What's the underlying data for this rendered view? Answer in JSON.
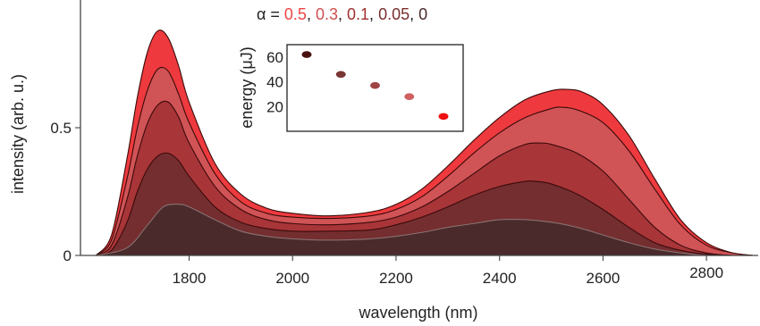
{
  "chart_data": {
    "type": "area",
    "xlabel": "wavelength (nm)",
    "ylabel": "intensity (arb. u.)",
    "xlim": [
      1590,
      2900
    ],
    "ylim": [
      0,
      1.0
    ],
    "x_ticks": [
      1800,
      2000,
      2200,
      2400,
      2600,
      2800
    ],
    "y_ticks": [
      {
        "value": 0,
        "label": "0"
      },
      {
        "value": 0.5,
        "label": "0.5"
      }
    ],
    "legend": {
      "prefix": "α = ",
      "separator": ", ",
      "entries": [
        {
          "label": "0.5",
          "color": "#ee4444"
        },
        {
          "label": "0.3",
          "color": "#d05050"
        },
        {
          "label": "0.1",
          "color": "#a03030"
        },
        {
          "label": "0.05",
          "color": "#7a2e2e"
        },
        {
          "label": "0",
          "color": "#4a2a2a"
        }
      ]
    },
    "series": [
      {
        "name": "0.5",
        "fill": "#ee3a3e",
        "x": [
          1620,
          1650,
          1680,
          1700,
          1720,
          1740,
          1760,
          1780,
          1800,
          1850,
          1900,
          1950,
          2000,
          2070,
          2150,
          2200,
          2250,
          2300,
          2350,
          2400,
          2450,
          2500,
          2530,
          2560,
          2600,
          2650,
          2700,
          2750,
          2800,
          2850,
          2890
        ],
        "y": [
          0.0,
          0.08,
          0.38,
          0.62,
          0.8,
          0.88,
          0.85,
          0.74,
          0.6,
          0.36,
          0.24,
          0.185,
          0.165,
          0.155,
          0.17,
          0.2,
          0.26,
          0.35,
          0.45,
          0.54,
          0.61,
          0.645,
          0.65,
          0.64,
          0.59,
          0.47,
          0.3,
          0.14,
          0.05,
          0.01,
          0.0
        ]
      },
      {
        "name": "0.3",
        "fill": "#d05356",
        "x": [
          1620,
          1650,
          1680,
          1700,
          1720,
          1740,
          1760,
          1780,
          1800,
          1850,
          1900,
          1950,
          2000,
          2070,
          2150,
          2200,
          2250,
          2300,
          2350,
          2400,
          2450,
          2500,
          2520,
          2550,
          2600,
          2650,
          2700,
          2750,
          2800,
          2850,
          2890
        ],
        "y": [
          0.0,
          0.06,
          0.3,
          0.5,
          0.65,
          0.73,
          0.72,
          0.63,
          0.52,
          0.32,
          0.21,
          0.165,
          0.15,
          0.145,
          0.155,
          0.18,
          0.23,
          0.31,
          0.4,
          0.48,
          0.54,
          0.575,
          0.58,
          0.57,
          0.52,
          0.41,
          0.26,
          0.12,
          0.04,
          0.01,
          0.0
        ]
      },
      {
        "name": "0.1",
        "fill": "#a83538",
        "x": [
          1620,
          1650,
          1680,
          1700,
          1720,
          1740,
          1760,
          1780,
          1800,
          1850,
          1900,
          1950,
          2000,
          2070,
          2150,
          2200,
          2250,
          2300,
          2350,
          2400,
          2450,
          2480,
          2500,
          2550,
          2600,
          2650,
          2700,
          2750,
          2800,
          2850,
          2890
        ],
        "y": [
          0.0,
          0.04,
          0.22,
          0.39,
          0.52,
          0.59,
          0.6,
          0.54,
          0.44,
          0.27,
          0.18,
          0.14,
          0.125,
          0.12,
          0.13,
          0.15,
          0.19,
          0.25,
          0.32,
          0.39,
          0.435,
          0.44,
          0.435,
          0.4,
          0.33,
          0.22,
          0.11,
          0.04,
          0.01,
          0.0,
          0.0
        ]
      },
      {
        "name": "0.05",
        "fill": "#742e30",
        "x": [
          1620,
          1650,
          1680,
          1700,
          1720,
          1740,
          1760,
          1780,
          1800,
          1850,
          1900,
          1950,
          2000,
          2070,
          2150,
          2200,
          2250,
          2300,
          2350,
          2400,
          2450,
          2470,
          2500,
          2550,
          2600,
          2650,
          2700,
          2750,
          2800,
          2850,
          2890
        ],
        "y": [
          0.0,
          0.02,
          0.13,
          0.25,
          0.34,
          0.39,
          0.4,
          0.37,
          0.31,
          0.19,
          0.13,
          0.105,
          0.095,
          0.095,
          0.1,
          0.12,
          0.15,
          0.19,
          0.235,
          0.27,
          0.29,
          0.29,
          0.28,
          0.24,
          0.18,
          0.11,
          0.05,
          0.02,
          0.005,
          0.0,
          0.0
        ]
      },
      {
        "name": "0",
        "fill": "#4a2a2b",
        "x": [
          1620,
          1680,
          1720,
          1750,
          1780,
          1800,
          1850,
          1900,
          1950,
          2000,
          2070,
          2150,
          2200,
          2250,
          2300,
          2350,
          2400,
          2450,
          2500,
          2550,
          2600,
          2650,
          2700,
          2750,
          2800,
          2850,
          2890
        ],
        "y": [
          0.0,
          0.03,
          0.12,
          0.19,
          0.2,
          0.19,
          0.14,
          0.095,
          0.075,
          0.065,
          0.06,
          0.065,
          0.075,
          0.09,
          0.11,
          0.125,
          0.14,
          0.14,
          0.13,
          0.11,
          0.08,
          0.05,
          0.025,
          0.01,
          0.0,
          0.0,
          0.0
        ]
      }
    ],
    "inset": {
      "type": "scatter",
      "ylabel": "energy (μJ)",
      "ylim": [
        0,
        70
      ],
      "y_ticks": [
        20,
        40,
        60
      ],
      "points": [
        {
          "x": 1,
          "y": 62,
          "color": "#4a1010"
        },
        {
          "x": 2,
          "y": 46,
          "color": "#7a3535"
        },
        {
          "x": 3,
          "y": 37,
          "color": "#a04545"
        },
        {
          "x": 4,
          "y": 28,
          "color": "#d06060"
        },
        {
          "x": 5,
          "y": 12,
          "color": "#ee1010"
        }
      ]
    }
  }
}
